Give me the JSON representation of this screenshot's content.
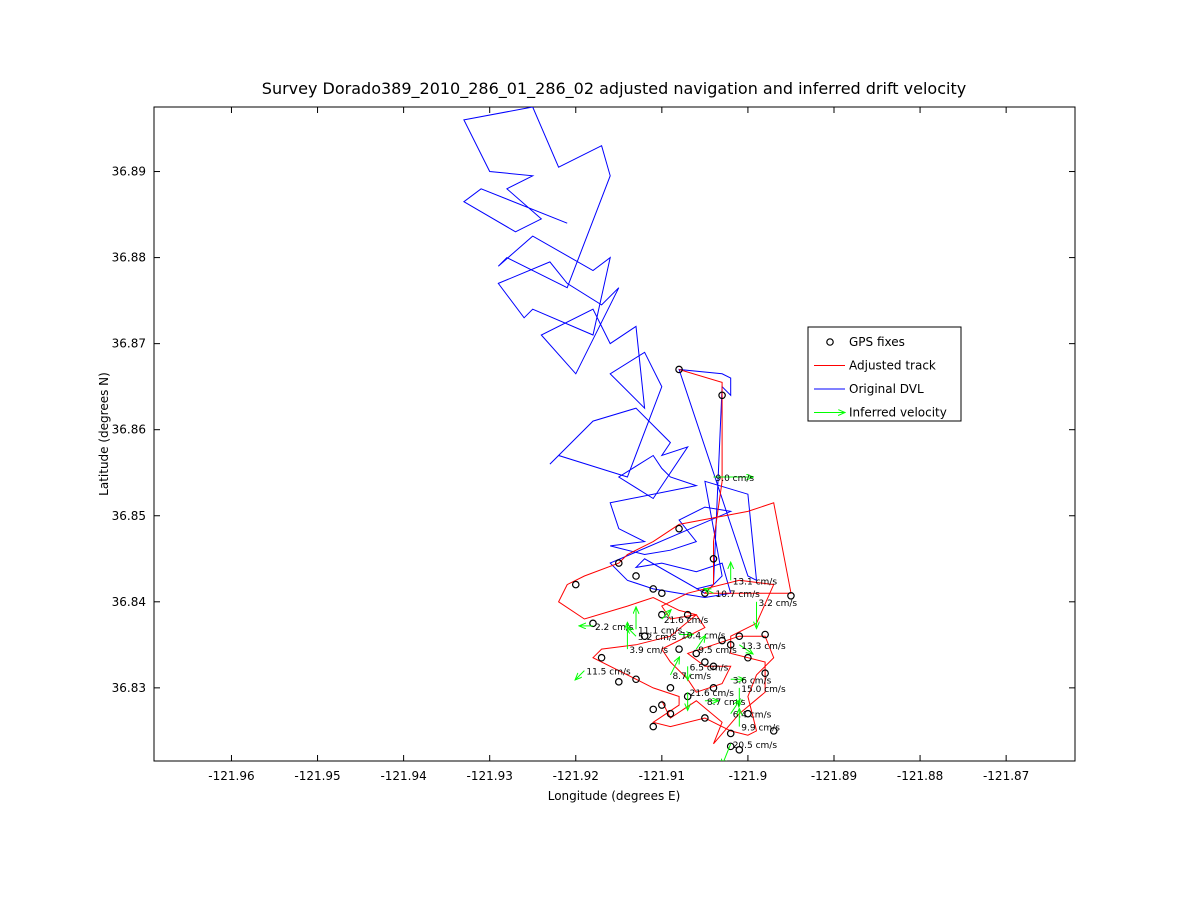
{
  "chart_data": {
    "type": "line",
    "title": "Survey Dorado389_2010_286_01_286_02 adjusted navigation and inferred drift velocity",
    "xlabel": "Longitude (degrees E)",
    "ylabel": "Latitude (degrees N)",
    "xlim": [
      -121.969,
      -121.862
    ],
    "ylim": [
      36.8215,
      36.8975
    ],
    "grid": false,
    "legend_position": "right",
    "xticks": [
      -121.96,
      -121.95,
      -121.94,
      -121.93,
      -121.92,
      -121.91,
      -121.9,
      -121.89,
      -121.88,
      -121.87
    ],
    "xtick_labels": [
      "-121.96",
      "-121.95",
      "-121.94",
      "-121.93",
      "-121.92",
      "-121.91",
      "-121.9",
      "-121.89",
      "-121.88",
      "-121.87"
    ],
    "yticks": [
      36.83,
      36.84,
      36.85,
      36.86,
      36.87,
      36.88,
      36.89
    ],
    "ytick_labels": [
      "36.83",
      "36.84",
      "36.85",
      "36.86",
      "36.87",
      "36.88",
      "36.89"
    ],
    "legend": [
      {
        "label": "GPS fixes",
        "symbol": "circle",
        "color": "#000000"
      },
      {
        "label": "Adjusted track",
        "symbol": "line",
        "color": "#ff0000"
      },
      {
        "label": "Original DVL",
        "symbol": "line",
        "color": "#0000ff"
      },
      {
        "label": "Inferred velocity",
        "symbol": "arrow",
        "color": "#00ff00"
      }
    ],
    "series": [
      {
        "name": "Original DVL",
        "color": "#0000ff",
        "points": [
          [
            -121.921,
            36.884
          ],
          [
            -121.931,
            36.888
          ],
          [
            -121.933,
            36.8865
          ],
          [
            -121.927,
            36.883
          ],
          [
            -121.924,
            36.8845
          ],
          [
            -121.928,
            36.888
          ],
          [
            -121.925,
            36.8895
          ],
          [
            -121.93,
            36.89
          ],
          [
            -121.933,
            36.896
          ],
          [
            -121.925,
            36.8975
          ],
          [
            -121.922,
            36.8905
          ],
          [
            -121.917,
            36.893
          ],
          [
            -121.916,
            36.8895
          ],
          [
            -121.921,
            36.8765
          ],
          [
            -121.928,
            36.88
          ],
          [
            -121.929,
            36.879
          ],
          [
            -121.925,
            36.8825
          ],
          [
            -121.918,
            36.8785
          ],
          [
            -121.916,
            36.88
          ],
          [
            -121.918,
            36.871
          ],
          [
            -121.925,
            36.874
          ],
          [
            -121.926,
            36.873
          ],
          [
            -121.929,
            36.877
          ],
          [
            -121.923,
            36.8795
          ],
          [
            -121.921,
            36.877
          ],
          [
            -121.917,
            36.8745
          ],
          [
            -121.915,
            36.8765
          ],
          [
            -121.92,
            36.8665
          ],
          [
            -121.924,
            36.871
          ],
          [
            -121.918,
            36.874
          ],
          [
            -121.916,
            36.87
          ],
          [
            -121.913,
            36.872
          ],
          [
            -121.912,
            36.8625
          ],
          [
            -121.916,
            36.8665
          ],
          [
            -121.912,
            36.869
          ],
          [
            -121.91,
            36.865
          ],
          [
            -121.914,
            36.8545
          ],
          [
            -121.922,
            36.857
          ],
          [
            -121.923,
            36.856
          ],
          [
            -121.918,
            36.861
          ],
          [
            -121.913,
            36.8625
          ],
          [
            -121.909,
            36.8585
          ],
          [
            -121.91,
            36.857
          ],
          [
            -121.907,
            36.858
          ],
          [
            -121.911,
            36.852
          ],
          [
            -121.915,
            36.8545
          ],
          [
            -121.911,
            36.857
          ],
          [
            -121.91,
            36.8555
          ],
          [
            -121.909,
            36.8545
          ],
          [
            -121.906,
            36.8535
          ],
          [
            -121.916,
            36.8515
          ],
          [
            -121.915,
            36.8485
          ],
          [
            -121.912,
            36.847
          ],
          [
            -121.916,
            36.8465
          ],
          [
            -121.912,
            36.8455
          ],
          [
            -121.909,
            36.846
          ],
          [
            -121.906,
            36.847
          ],
          [
            -121.908,
            36.8495
          ],
          [
            -121.905,
            36.851
          ],
          [
            -121.902,
            36.8505
          ],
          [
            -121.916,
            36.8445
          ],
          [
            -121.914,
            36.8425
          ],
          [
            -121.911,
            36.8415
          ],
          [
            -121.908,
            36.841
          ],
          [
            -121.905,
            36.8405
          ],
          [
            -121.902,
            36.841
          ],
          [
            -121.903,
            36.8445
          ],
          [
            -121.906,
            36.8435
          ],
          [
            -121.91,
            36.8445
          ],
          [
            -121.913,
            36.844
          ],
          [
            -121.912,
            36.845
          ],
          [
            -121.905,
            36.841
          ],
          [
            -121.903,
            36.843
          ],
          [
            -121.905,
            36.854
          ],
          [
            -121.9,
            36.8525
          ],
          [
            -121.899,
            36.8425
          ],
          [
            -121.9,
            36.843
          ],
          [
            -121.908,
            36.867
          ],
          [
            -121.903,
            36.8665
          ],
          [
            -121.902,
            36.866
          ],
          [
            -121.902,
            36.864
          ],
          [
            -121.903,
            36.865
          ],
          [
            -121.904,
            36.842
          ],
          [
            -121.906,
            36.8415
          ]
        ]
      },
      {
        "name": "Adjusted track",
        "color": "#ff0000",
        "points": [
          [
            -121.908,
            36.867
          ],
          [
            -121.903,
            36.8655
          ],
          [
            -121.903,
            36.861
          ],
          [
            -121.903,
            36.854
          ],
          [
            -121.904,
            36.847
          ],
          [
            -121.904,
            36.842
          ],
          [
            -121.905,
            36.841
          ],
          [
            -121.898,
            36.841
          ],
          [
            -121.895,
            36.841
          ],
          [
            -121.897,
            36.8515
          ],
          [
            -121.9,
            36.8505
          ],
          [
            -121.908,
            36.849
          ],
          [
            -121.911,
            36.847
          ],
          [
            -121.914,
            36.8455
          ],
          [
            -121.915,
            36.8445
          ],
          [
            -121.919,
            36.843
          ],
          [
            -121.921,
            36.842
          ],
          [
            -121.922,
            36.84
          ],
          [
            -121.919,
            36.838
          ],
          [
            -121.914,
            36.8395
          ],
          [
            -121.911,
            36.8405
          ],
          [
            -121.908,
            36.839
          ],
          [
            -121.906,
            36.8385
          ],
          [
            -121.909,
            36.836
          ],
          [
            -121.913,
            36.835
          ],
          [
            -121.917,
            36.8345
          ],
          [
            -121.918,
            36.8335
          ],
          [
            -121.914,
            36.8315
          ],
          [
            -121.911,
            36.83
          ],
          [
            -121.908,
            36.829
          ],
          [
            -121.908,
            36.828
          ],
          [
            -121.911,
            36.826
          ],
          [
            -121.909,
            36.8255
          ],
          [
            -121.905,
            36.8265
          ],
          [
            -121.902,
            36.825
          ],
          [
            -121.9,
            36.8245
          ],
          [
            -121.899,
            36.825
          ],
          [
            -121.9,
            36.829
          ],
          [
            -121.899,
            36.8315
          ],
          [
            -121.897,
            36.8335
          ],
          [
            -121.898,
            36.836
          ],
          [
            -121.901,
            36.836
          ],
          [
            -121.904,
            36.835
          ],
          [
            -121.907,
            36.834
          ],
          [
            -121.905,
            36.8325
          ],
          [
            -121.902,
            36.8325
          ],
          [
            -121.903,
            36.8305
          ],
          [
            -121.906,
            36.8295
          ],
          [
            -121.907,
            36.831
          ],
          [
            -121.909,
            36.833
          ],
          [
            -121.91,
            36.8345
          ],
          [
            -121.908,
            36.8355
          ],
          [
            -121.905,
            36.837
          ],
          [
            -121.906,
            36.8385
          ],
          [
            -121.909,
            36.838
          ],
          [
            -121.91,
            36.8395
          ],
          [
            -121.907,
            36.841
          ],
          [
            -121.901,
            36.8425
          ],
          [
            -121.897,
            36.842
          ],
          [
            -121.899,
            36.8375
          ],
          [
            -121.902,
            36.836
          ],
          [
            -121.902,
            36.834
          ],
          [
            -121.898,
            36.833
          ],
          [
            -121.898,
            36.8295
          ],
          [
            -121.901,
            36.827
          ],
          [
            -121.904,
            36.8235
          ],
          [
            -121.903,
            36.826
          ],
          [
            -121.906,
            36.8285
          ],
          [
            -121.909,
            36.8265
          ],
          [
            -121.91,
            36.8285
          ]
        ]
      }
    ],
    "gps_fixes": [
      [
        -121.908,
        36.867
      ],
      [
        -121.903,
        36.864
      ],
      [
        -121.908,
        36.8485
      ],
      [
        -121.904,
        36.845
      ],
      [
        -121.915,
        36.8445
      ],
      [
        -121.913,
        36.843
      ],
      [
        -121.92,
        36.842
      ],
      [
        -121.911,
        36.8415
      ],
      [
        -121.91,
        36.841
      ],
      [
        -121.905,
        36.841
      ],
      [
        -121.895,
        36.8407
      ],
      [
        -121.918,
        36.8375
      ],
      [
        -121.91,
        36.8385
      ],
      [
        -121.907,
        36.8385
      ],
      [
        -121.912,
        36.836
      ],
      [
        -121.908,
        36.8345
      ],
      [
        -121.906,
        36.834
      ],
      [
        -121.901,
        36.836
      ],
      [
        -121.898,
        36.8362
      ],
      [
        -121.903,
        36.8355
      ],
      [
        -121.902,
        36.835
      ],
      [
        -121.917,
        36.8335
      ],
      [
        -121.905,
        36.833
      ],
      [
        -121.9,
        36.8335
      ],
      [
        -121.904,
        36.8325
      ],
      [
        -121.898,
        36.8317
      ],
      [
        -121.913,
        36.831
      ],
      [
        -121.915,
        36.8307
      ],
      [
        -121.909,
        36.83
      ],
      [
        -121.904,
        36.83
      ],
      [
        -121.907,
        36.829
      ],
      [
        -121.91,
        36.828
      ],
      [
        -121.911,
        36.8275
      ],
      [
        -121.909,
        36.827
      ],
      [
        -121.911,
        36.8255
      ],
      [
        -121.905,
        36.8265
      ],
      [
        -121.9,
        36.827
      ],
      [
        -121.902,
        36.8247
      ],
      [
        -121.897,
        36.825
      ],
      [
        -121.902,
        36.8232
      ],
      [
        -121.901,
        36.8228
      ]
    ],
    "velocities": [
      {
        "x": -121.904,
        "y": 36.8545,
        "u": 0.0045,
        "v": 0.0,
        "label": "9.0 cm/s"
      },
      {
        "x": -121.902,
        "y": 36.8425,
        "u": 0.0,
        "v": 0.002,
        "label": "13.1 cm/s"
      },
      {
        "x": -121.904,
        "y": 36.841,
        "u": -0.001,
        "v": 0.0005,
        "label": "10.7 cm/s"
      },
      {
        "x": -121.899,
        "y": 36.84,
        "u": 0.0,
        "v": -0.003,
        "label": "3.2 cm/s"
      },
      {
        "x": -121.91,
        "y": 36.838,
        "u": 0.001,
        "v": 0.001,
        "label": "21.6 cm/s"
      },
      {
        "x": -121.918,
        "y": 36.8372,
        "u": -0.0015,
        "v": 0.0,
        "label": "2.2 cm/s"
      },
      {
        "x": -121.913,
        "y": 36.8368,
        "u": 0.0,
        "v": 0.0025,
        "label": "11.1 cm/s"
      },
      {
        "x": -121.913,
        "y": 36.836,
        "u": -0.001,
        "v": 0.001,
        "label": "5.2 cm/s"
      },
      {
        "x": -121.908,
        "y": 36.8362,
        "u": 0.0015,
        "v": 0.0,
        "label": "10.4 cm/s"
      },
      {
        "x": -121.914,
        "y": 36.8345,
        "u": 0.0,
        "v": 0.003,
        "label": "3.9 cm/s"
      },
      {
        "x": -121.906,
        "y": 36.8345,
        "u": 0.001,
        "v": 0.0015,
        "label": "9.5 cm/s"
      },
      {
        "x": -121.901,
        "y": 36.835,
        "u": 0.0015,
        "v": -0.001,
        "label": "13.3 cm/s"
      },
      {
        "x": -121.907,
        "y": 36.8325,
        "u": 0.0,
        "v": -0.0015,
        "label": "6.5 cm/s"
      },
      {
        "x": -121.909,
        "y": 36.8315,
        "u": 0.001,
        "v": 0.002,
        "label": "8.7 cm/s"
      },
      {
        "x": -121.902,
        "y": 36.831,
        "u": 0.0015,
        "v": 0.0,
        "label": "3.6 cm/s"
      },
      {
        "x": -121.901,
        "y": 36.83,
        "u": 0.0,
        "v": -0.002,
        "label": "15.0 cm/s"
      },
      {
        "x": -121.919,
        "y": 36.832,
        "u": -0.001,
        "v": -0.001,
        "label": "11.5 cm/s"
      },
      {
        "x": -121.907,
        "y": 36.8295,
        "u": 0.0,
        "v": -0.002,
        "label": "21.6 cm/s"
      },
      {
        "x": -121.905,
        "y": 36.8285,
        "u": 0.0015,
        "v": 0.0,
        "label": "8.7 cm/s"
      },
      {
        "x": -121.902,
        "y": 36.827,
        "u": 0.001,
        "v": 0.0015,
        "label": "6.4 cm/s"
      },
      {
        "x": -121.901,
        "y": 36.8255,
        "u": 0.0,
        "v": 0.002,
        "label": "9.9 cm/s"
      },
      {
        "x": -121.902,
        "y": 36.8235,
        "u": -0.001,
        "v": -0.0025,
        "label": "20.5 cm/s"
      }
    ]
  }
}
